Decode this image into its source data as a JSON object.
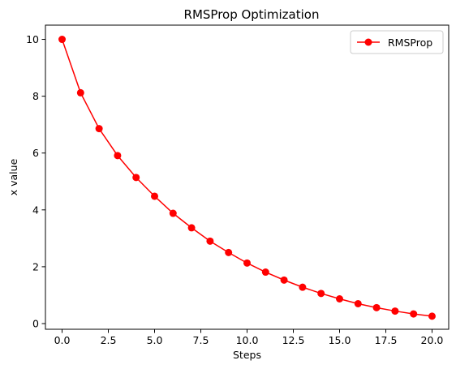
{
  "chart_data": {
    "type": "line",
    "title": "RMSProp Optimization",
    "xlabel": "Steps",
    "ylabel": "x value",
    "xlim": [
      -0.9,
      20.9
    ],
    "ylim": [
      -0.2,
      10.5
    ],
    "x_ticks": [
      0.0,
      2.5,
      5.0,
      7.5,
      10.0,
      12.5,
      15.0,
      17.5,
      20.0
    ],
    "x_tick_labels": [
      "0.0",
      "2.5",
      "5.0",
      "7.5",
      "10.0",
      "12.5",
      "15.0",
      "17.5",
      "20.0"
    ],
    "y_ticks": [
      0,
      2,
      4,
      6,
      8,
      10
    ],
    "y_tick_labels": [
      "0",
      "2",
      "4",
      "6",
      "8",
      "10"
    ],
    "grid": false,
    "legend_position": "top-right",
    "series": [
      {
        "name": "RMSProp",
        "color": "#ff0000",
        "marker": "circle",
        "x": [
          0,
          1,
          2,
          3,
          4,
          5,
          6,
          7,
          8,
          9,
          10,
          11,
          12,
          13,
          14,
          15,
          16,
          17,
          18,
          19,
          20
        ],
        "y": [
          10.0,
          8.12,
          6.86,
          5.91,
          5.14,
          4.48,
          3.88,
          3.37,
          2.9,
          2.5,
          2.13,
          1.81,
          1.53,
          1.28,
          1.06,
          0.87,
          0.7,
          0.56,
          0.44,
          0.34,
          0.26
        ]
      }
    ]
  }
}
